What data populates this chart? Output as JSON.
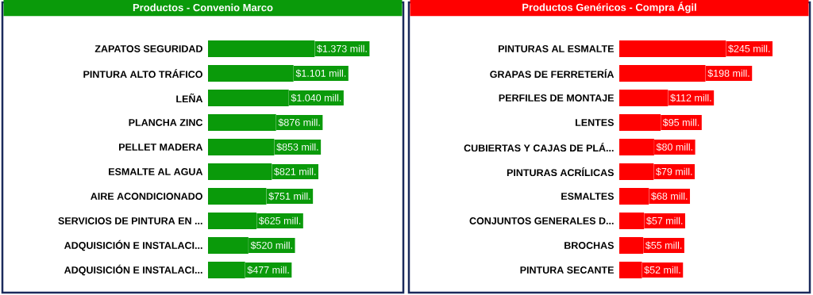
{
  "chart_data": [
    {
      "type": "bar",
      "orientation": "horizontal",
      "title": "Productos - Convenio Marco",
      "color": "#0a9a0a",
      "tick_labels": "y",
      "categories": [
        "ZAPATOS SEGURIDAD",
        "PINTURA ALTO TRÁFICO",
        "LEÑA",
        "PLANCHA ZINC",
        "PELLET MADERA",
        "ESMALTE AL AGUA",
        "AIRE ACONDICIONADO",
        "SERVICIOS DE PINTURA EN ...",
        "ADQUISICIÓN E INSTALACI...",
        "ADQUISICIÓN E INSTALACI..."
      ],
      "values": [
        1373,
        1101,
        1040,
        876,
        853,
        821,
        751,
        625,
        520,
        477
      ],
      "value_labels": [
        "$1.373 mill.",
        "$1.101 mill.",
        "$1.040 mill.",
        "$876 mill.",
        "$853 mill.",
        "$821 mill.",
        "$751 mill.",
        "$625 mill.",
        "$520 mill.",
        "$477 mill."
      ]
    },
    {
      "type": "bar",
      "orientation": "horizontal",
      "title": "Productos Genéricos - Compra Ágil",
      "color": "#ff0000",
      "tick_labels": "y",
      "categories": [
        "PINTURAS AL ESMALTE",
        "GRAPAS DE FERRETERÍA",
        "PERFILES DE MONTAJE",
        "LENTES",
        "CUBIERTAS Y CAJAS DE PLÁ...",
        "PINTURAS ACRÍLICAS",
        "ESMALTES",
        "CONJUNTOS GENERALES D...",
        "BROCHAS",
        "PINTURA SECANTE"
      ],
      "values": [
        245,
        198,
        112,
        95,
        80,
        79,
        68,
        57,
        55,
        52
      ],
      "value_labels": [
        "$245 mill.",
        "$198 mill.",
        "$112 mill.",
        "$95 mill.",
        "$80 mill.",
        "$79 mill.",
        "$68 mill.",
        "$57 mill.",
        "$55 mill.",
        "$52 mill."
      ]
    }
  ]
}
